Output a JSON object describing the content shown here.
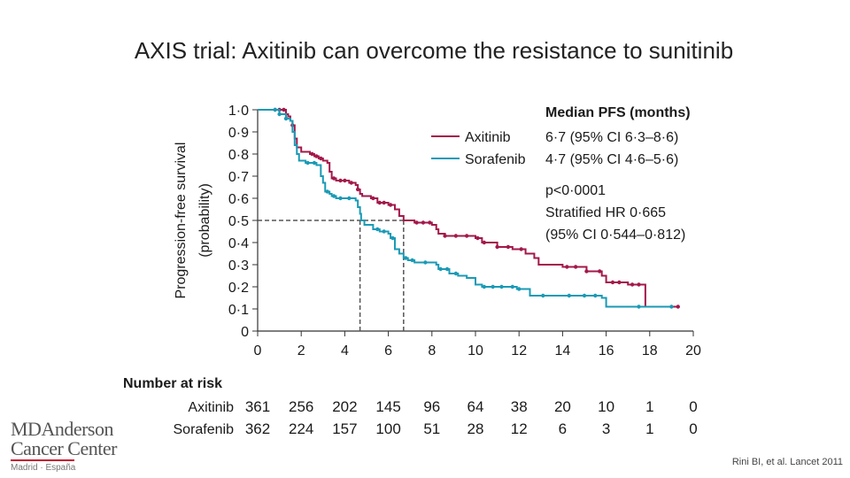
{
  "slide": {
    "title": "AXIS trial: Axitinib can overcome the resistance to sunitinib",
    "citation": "Rini BI, et al. Lancet 2011",
    "logo": {
      "line1": "MDAnderson",
      "line2": "Cancer Center",
      "line3": "Madrid · España"
    }
  },
  "chart_data": {
    "type": "line",
    "ylabel": [
      "Progression-free survival",
      "(probability)"
    ],
    "xlim": [
      0,
      20
    ],
    "ylim": [
      0,
      1
    ],
    "xticks": [
      "0",
      "2",
      "4",
      "6",
      "8",
      "10",
      "12",
      "14",
      "16",
      "18",
      "20"
    ],
    "yticks": [
      "0",
      "0·1",
      "0·2",
      "0·3",
      "0·4",
      "0·5",
      "0·6",
      "0·7",
      "0·8",
      "0·9",
      "1·0"
    ],
    "grid": false,
    "median_line": {
      "y": 0.5,
      "x_values": [
        4.7,
        6.7
      ]
    },
    "legend": {
      "placement": "top-right",
      "header": "Median PFS (months)",
      "entries": [
        {
          "name": "Axitinib",
          "value": "6·7 (95% CI 6·3–8·6)"
        },
        {
          "name": "Sorafenib",
          "value": "4·7 (95% CI 4·6–5·6)"
        }
      ]
    },
    "annotations": [
      "p<0·0001",
      "Stratified HR 0·665",
      "(95% CI 0·544–0·812)"
    ],
    "series": [
      {
        "name": "Axitinib",
        "color": "#a3184a",
        "points": [
          [
            0,
            1.0
          ],
          [
            1.1,
            1.0
          ],
          [
            1.3,
            0.98
          ],
          [
            1.4,
            0.97
          ],
          [
            1.5,
            0.95
          ],
          [
            1.6,
            0.93
          ],
          [
            1.7,
            0.9
          ],
          [
            1.7,
            0.87
          ],
          [
            1.8,
            0.85
          ],
          [
            1.8,
            0.83
          ],
          [
            2.0,
            0.81
          ],
          [
            2.4,
            0.8
          ],
          [
            2.6,
            0.79
          ],
          [
            2.8,
            0.78
          ],
          [
            3.0,
            0.77
          ],
          [
            3.2,
            0.76
          ],
          [
            3.3,
            0.72
          ],
          [
            3.4,
            0.69
          ],
          [
            3.6,
            0.68
          ],
          [
            4.2,
            0.67
          ],
          [
            4.5,
            0.66
          ],
          [
            4.6,
            0.64
          ],
          [
            4.7,
            0.62
          ],
          [
            4.8,
            0.61
          ],
          [
            5.2,
            0.6
          ],
          [
            5.5,
            0.58
          ],
          [
            6.0,
            0.57
          ],
          [
            6.3,
            0.55
          ],
          [
            6.5,
            0.52
          ],
          [
            6.7,
            0.5
          ],
          [
            7.2,
            0.49
          ],
          [
            8.0,
            0.48
          ],
          [
            8.2,
            0.46
          ],
          [
            8.3,
            0.44
          ],
          [
            8.6,
            0.43
          ],
          [
            10.0,
            0.42
          ],
          [
            10.3,
            0.4
          ],
          [
            11.0,
            0.38
          ],
          [
            11.7,
            0.37
          ],
          [
            12.3,
            0.35
          ],
          [
            12.7,
            0.33
          ],
          [
            12.9,
            0.3
          ],
          [
            14.0,
            0.29
          ],
          [
            15.1,
            0.27
          ],
          [
            15.8,
            0.25
          ],
          [
            16.0,
            0.22
          ],
          [
            17.0,
            0.21
          ],
          [
            17.8,
            0.21
          ],
          [
            17.8,
            0.11
          ],
          [
            19.3,
            0.11
          ]
        ],
        "censor_x": [
          0.8,
          1.0,
          1.2,
          1.6,
          2.5,
          2.7,
          2.9,
          3.5,
          3.8,
          4.0,
          4.3,
          4.6,
          5.3,
          5.6,
          5.8,
          6.1,
          7.3,
          7.6,
          7.9,
          8.6,
          9.1,
          9.6,
          10.1,
          10.4,
          11.0,
          11.5,
          12.1,
          14.2,
          14.6,
          15.1,
          15.7,
          16.3,
          16.6,
          17.2,
          17.5,
          19.3
        ]
      },
      {
        "name": "Sorafenib",
        "color": "#1a9ab5",
        "points": [
          [
            0,
            1.0
          ],
          [
            1.0,
            0.98
          ],
          [
            1.3,
            0.96
          ],
          [
            1.5,
            0.95
          ],
          [
            1.6,
            0.9
          ],
          [
            1.7,
            0.84
          ],
          [
            1.8,
            0.8
          ],
          [
            1.9,
            0.77
          ],
          [
            2.2,
            0.76
          ],
          [
            2.7,
            0.75
          ],
          [
            2.9,
            0.74
          ],
          [
            2.9,
            0.7
          ],
          [
            3.0,
            0.67
          ],
          [
            3.1,
            0.63
          ],
          [
            3.3,
            0.62
          ],
          [
            3.4,
            0.61
          ],
          [
            3.6,
            0.6
          ],
          [
            4.5,
            0.59
          ],
          [
            4.6,
            0.56
          ],
          [
            4.7,
            0.53
          ],
          [
            4.75,
            0.5
          ],
          [
            4.9,
            0.48
          ],
          [
            5.3,
            0.46
          ],
          [
            5.6,
            0.45
          ],
          [
            6.0,
            0.44
          ],
          [
            6.1,
            0.42
          ],
          [
            6.3,
            0.37
          ],
          [
            6.5,
            0.35
          ],
          [
            6.7,
            0.33
          ],
          [
            6.9,
            0.32
          ],
          [
            7.2,
            0.31
          ],
          [
            8.2,
            0.3
          ],
          [
            8.3,
            0.28
          ],
          [
            8.8,
            0.26
          ],
          [
            9.2,
            0.25
          ],
          [
            9.6,
            0.24
          ],
          [
            10.0,
            0.21
          ],
          [
            10.3,
            0.2
          ],
          [
            11.9,
            0.19
          ],
          [
            12.5,
            0.16
          ],
          [
            15.8,
            0.15
          ],
          [
            16.0,
            0.11
          ],
          [
            19.0,
            0.11
          ]
        ],
        "censor_x": [
          0.8,
          1.0,
          1.3,
          2.3,
          2.6,
          3.2,
          3.5,
          3.8,
          4.2,
          5.5,
          5.8,
          6.2,
          6.8,
          7.1,
          7.7,
          8.4,
          8.7,
          9.1,
          10.4,
          10.8,
          11.2,
          11.7,
          12.0,
          13.1,
          14.3,
          15.0,
          15.5,
          17.5,
          19.0
        ]
      }
    ],
    "risk_table": {
      "header": "Number at risk",
      "rows": [
        {
          "label": "Axitinib",
          "values": [
            "361",
            "256",
            "202",
            "145",
            "96",
            "64",
            "38",
            "20",
            "10",
            "1",
            "0"
          ]
        },
        {
          "label": "Sorafenib",
          "values": [
            "362",
            "224",
            "157",
            "100",
            "51",
            "28",
            "12",
            "6",
            "3",
            "1",
            "0"
          ]
        }
      ]
    }
  }
}
